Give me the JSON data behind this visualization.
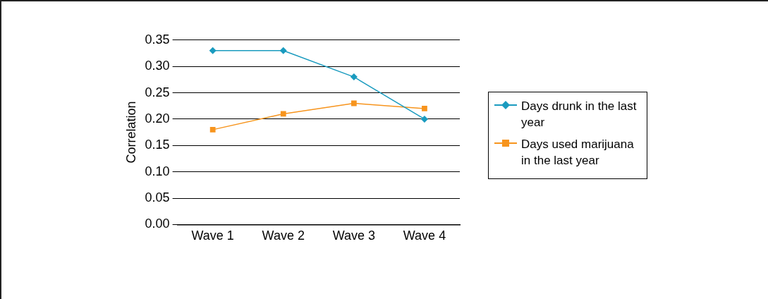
{
  "chart_data": {
    "type": "line",
    "ylabel": "Correlation",
    "categories": [
      "Wave 1",
      "Wave 2",
      "Wave 3",
      "Wave 4"
    ],
    "ylim": [
      0,
      0.35
    ],
    "yticks": [
      {
        "value": 0,
        "label": "0.00"
      },
      {
        "value": 0.05,
        "label": "0.05"
      },
      {
        "value": 0.1,
        "label": "0.10"
      },
      {
        "value": 0.15,
        "label": "0.15"
      },
      {
        "value": 0.2,
        "label": "0.20"
      },
      {
        "value": 0.25,
        "label": "0.25"
      },
      {
        "value": 0.3,
        "label": "0.30"
      },
      {
        "value": 0.35,
        "label": "0.35"
      }
    ],
    "grid": "y",
    "legend": "right",
    "line_style": "solid",
    "series": [
      {
        "name": "Days drunk in the last year",
        "color": "#1a9bbf",
        "marker": "diamond",
        "values": [
          0.33,
          0.33,
          0.28,
          0.2
        ]
      },
      {
        "name": "Days used marijuana in the last year",
        "color": "#f7941d",
        "marker": "square",
        "values": [
          0.18,
          0.21,
          0.23,
          0.22
        ]
      }
    ]
  }
}
